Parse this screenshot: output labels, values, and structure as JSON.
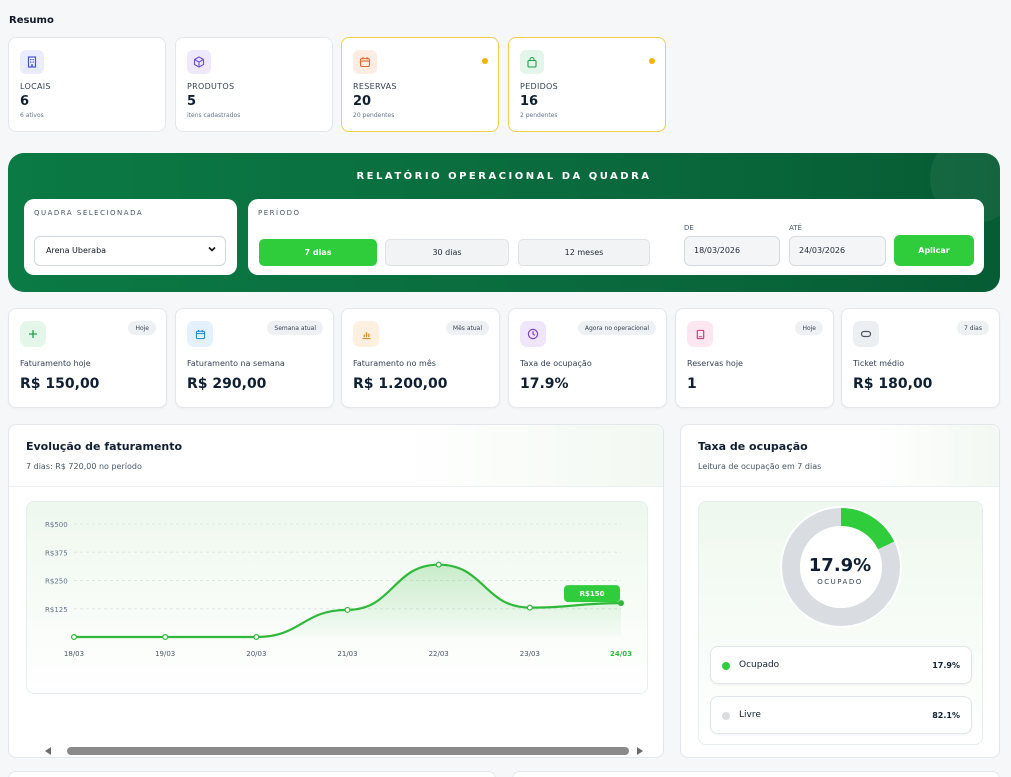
{
  "summary": {
    "title": "Resumo",
    "cards": [
      {
        "label": "LOCAIS",
        "value": "6",
        "sub": "6 ativos",
        "icon": "building-icon",
        "color": "#4457d8"
      },
      {
        "label": "PRODUTOS",
        "value": "5",
        "sub": "itens cadastrados",
        "icon": "box-icon",
        "color": "#6d4fd8"
      },
      {
        "label": "RESERVAS",
        "value": "20",
        "sub": "20 pendentes",
        "icon": "calendar-icon",
        "color": "#e56a2a",
        "alert": true
      },
      {
        "label": "PEDIDOS",
        "value": "16",
        "sub": "2 pendentes",
        "icon": "bag-icon",
        "color": "#1fa34a",
        "alert": true
      }
    ]
  },
  "report": {
    "title": "RELATÓRIO OPERACIONAL DA QUADRA",
    "court_label": "QUADRA SELECIONADA",
    "court_value": "Arena Uberaba",
    "period_label": "PERÍODO",
    "periods": [
      "7 dias",
      "30 dias",
      "12 meses"
    ],
    "active_period": "7 dias",
    "from_label": "DE",
    "from_value": "18/03/2026",
    "to_label": "ATÉ",
    "to_value": "24/03/2026",
    "apply_label": "Aplicar"
  },
  "kpis": [
    {
      "badge": "Hoje",
      "label": "Faturamento hoje",
      "value": "R$ 150,00",
      "icon": "plus-icon",
      "bg": "#e4f6ea",
      "fg": "#22a04a",
      "glyph": "+"
    },
    {
      "badge": "Semana atual",
      "label": "Faturamento na semana",
      "value": "R$ 290,00",
      "icon": "calendar-icon",
      "bg": "#e2f1fb",
      "fg": "#1f86c6",
      "glyph": ""
    },
    {
      "badge": "Mês atual",
      "label": "Faturamento no mês",
      "value": "R$ 1.200,00",
      "icon": "bar-chart-icon",
      "bg": "#fdf0e0",
      "fg": "#d58a1d",
      "glyph": ""
    },
    {
      "badge": "Agora no operacional",
      "label": "Taxa de ocupação",
      "value": "17.9%",
      "icon": "clock-icon",
      "bg": "#efe6fb",
      "fg": "#7b3fc8",
      "glyph": ""
    },
    {
      "badge": "Hoje",
      "label": "Reservas hoje",
      "value": "1",
      "icon": "book-icon",
      "bg": "#fce6f0",
      "fg": "#cf2f78",
      "glyph": ""
    },
    {
      "badge": "7 dias",
      "label": "Ticket médio",
      "value": "R$ 180,00",
      "icon": "ticket-icon",
      "bg": "#eceff2",
      "fg": "#4b5563",
      "glyph": ""
    }
  ],
  "revenue": {
    "title": "Evolução de faturamento",
    "subtitle": "7 dias: R$ 720,00 no período",
    "tooltip": "R$150"
  },
  "occupancy": {
    "title": "Taxa de ocupação",
    "subtitle": "Leitura de ocupação em 7 dias",
    "center_value": "17.9%",
    "center_label": "OCUPADO",
    "items": [
      {
        "name": "Ocupado",
        "value": "17.9%",
        "color": "#2fcc3c"
      },
      {
        "name": "Livre",
        "value": "82.1%",
        "color": "#d9dde2"
      }
    ],
    "occupied_fraction": 0.179
  },
  "chart_data": {
    "type": "area",
    "categories": [
      "18/03",
      "19/03",
      "20/03",
      "21/03",
      "22/03",
      "23/03",
      "24/03"
    ],
    "values": [
      0,
      0,
      0,
      120,
      320,
      130,
      150
    ],
    "yticks": [
      "R$125",
      "R$250",
      "R$375",
      "R$500"
    ],
    "ylim": [
      0,
      500
    ],
    "color": "#2fb83a",
    "highlight_index": 6,
    "grid": true
  }
}
